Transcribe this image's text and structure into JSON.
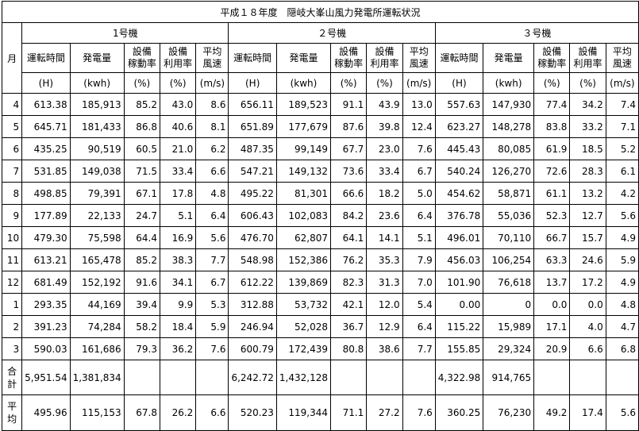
{
  "title": "平成１８年度　隠岐大峯山風力発電所運転状況",
  "month_header": "月",
  "units_header": [
    {
      "name": "1号機"
    },
    {
      "name": "２号機"
    },
    {
      "name": "３号機"
    }
  ],
  "col_headers": [
    "運転時間",
    "発電量",
    "設備\n稼動率",
    "設備\n利用率",
    "平均\n風速"
  ],
  "col_units": [
    "(H)",
    "(kwh)",
    "(%)",
    "(%)",
    "(m/s)"
  ],
  "rows": [
    {
      "month": "4",
      "u1": [
        "613.38",
        "185,913",
        "85.2",
        "43.0",
        "8.6"
      ],
      "u2": [
        "656.11",
        "189,523",
        "91.1",
        "43.9",
        "13.0"
      ],
      "u3": [
        "557.63",
        "147,930",
        "77.4",
        "34.2",
        "7.4"
      ]
    },
    {
      "month": "5",
      "u1": [
        "645.71",
        "181,433",
        "86.8",
        "40.6",
        "8.1"
      ],
      "u2": [
        "651.89",
        "177,679",
        "87.6",
        "39.8",
        "12.4"
      ],
      "u3": [
        "623.27",
        "148,278",
        "83.8",
        "33.2",
        "7.1"
      ]
    },
    {
      "month": "6",
      "u1": [
        "435.25",
        "90,519",
        "60.5",
        "21.0",
        "6.2"
      ],
      "u2": [
        "487.35",
        "99,149",
        "67.7",
        "23.0",
        "7.6"
      ],
      "u3": [
        "445.43",
        "80,085",
        "61.9",
        "18.5",
        "5.2"
      ]
    },
    {
      "month": "7",
      "u1": [
        "531.85",
        "149,038",
        "71.5",
        "33.4",
        "6.6"
      ],
      "u2": [
        "547.21",
        "149,132",
        "73.6",
        "33.4",
        "6.7"
      ],
      "u3": [
        "540.24",
        "126,270",
        "72.6",
        "28.3",
        "6.1"
      ]
    },
    {
      "month": "8",
      "u1": [
        "498.85",
        "79,391",
        "67.1",
        "17.8",
        "4.8"
      ],
      "u2": [
        "495.22",
        "81,301",
        "66.6",
        "18.2",
        "5.0"
      ],
      "u3": [
        "454.62",
        "58,871",
        "61.1",
        "13.2",
        "4.2"
      ]
    },
    {
      "month": "9",
      "u1": [
        "177.89",
        "22,133",
        "24.7",
        "5.1",
        "6.4"
      ],
      "u2": [
        "606.43",
        "102,083",
        "84.2",
        "23.6",
        "6.4"
      ],
      "u3": [
        "376.78",
        "55,036",
        "52.3",
        "12.7",
        "5.6"
      ]
    },
    {
      "month": "10",
      "u1": [
        "479.30",
        "75,598",
        "64.4",
        "16.9",
        "5.6"
      ],
      "u2": [
        "476.70",
        "62,807",
        "64.1",
        "14.1",
        "5.1"
      ],
      "u3": [
        "496.01",
        "70,110",
        "66.7",
        "15.7",
        "4.9"
      ]
    },
    {
      "month": "11",
      "u1": [
        "613.21",
        "165,478",
        "85.2",
        "38.3",
        "7.7"
      ],
      "u2": [
        "548.98",
        "152,386",
        "76.2",
        "35.3",
        "7.9"
      ],
      "u3": [
        "456.03",
        "106,254",
        "63.3",
        "24.6",
        "5.9"
      ]
    },
    {
      "month": "12",
      "u1": [
        "681.49",
        "152,192",
        "91.6",
        "34.1",
        "6.7"
      ],
      "u2": [
        "612.22",
        "139,869",
        "82.3",
        "31.3",
        "7.0"
      ],
      "u3": [
        "101.90",
        "76,618",
        "13.7",
        "17.2",
        "4.9"
      ]
    },
    {
      "month": "1",
      "u1": [
        "293.35",
        "44,169",
        "39.4",
        "9.9",
        "5.3"
      ],
      "u2": [
        "312.88",
        "53,732",
        "42.1",
        "12.0",
        "5.4"
      ],
      "u3": [
        "0.00",
        "0",
        "0.0",
        "0.0",
        "4.8"
      ]
    },
    {
      "month": "2",
      "u1": [
        "391.23",
        "74,284",
        "58.2",
        "18.4",
        "5.9"
      ],
      "u2": [
        "246.94",
        "52,028",
        "36.7",
        "12.9",
        "6.4"
      ],
      "u3": [
        "115.22",
        "15,989",
        "17.1",
        "4.0",
        "4.7"
      ]
    },
    {
      "month": "3",
      "u1": [
        "590.03",
        "161,686",
        "79.3",
        "36.2",
        "7.6"
      ],
      "u2": [
        "600.79",
        "172,439",
        "80.8",
        "38.6",
        "7.7"
      ],
      "u3": [
        "155.85",
        "29,324",
        "20.9",
        "6.6",
        "6.8"
      ]
    }
  ],
  "total_row": {
    "label": "合\n計",
    "u1": [
      "5,951.54",
      "1,381,834",
      "",
      "",
      ""
    ],
    "u2": [
      "6,242.72",
      "1,432,128",
      "",
      "",
      ""
    ],
    "u3": [
      "4,322.98",
      "914,765",
      "",
      "",
      ""
    ]
  },
  "avg_row": {
    "label": "平\n均",
    "u1": [
      "495.96",
      "115,153",
      "67.8",
      "26.2",
      "6.6"
    ],
    "u2": [
      "520.23",
      "119,344",
      "71.1",
      "27.2",
      "7.6"
    ],
    "u3": [
      "360.25",
      "76,230",
      "49.2",
      "17.4",
      "5.6"
    ]
  }
}
